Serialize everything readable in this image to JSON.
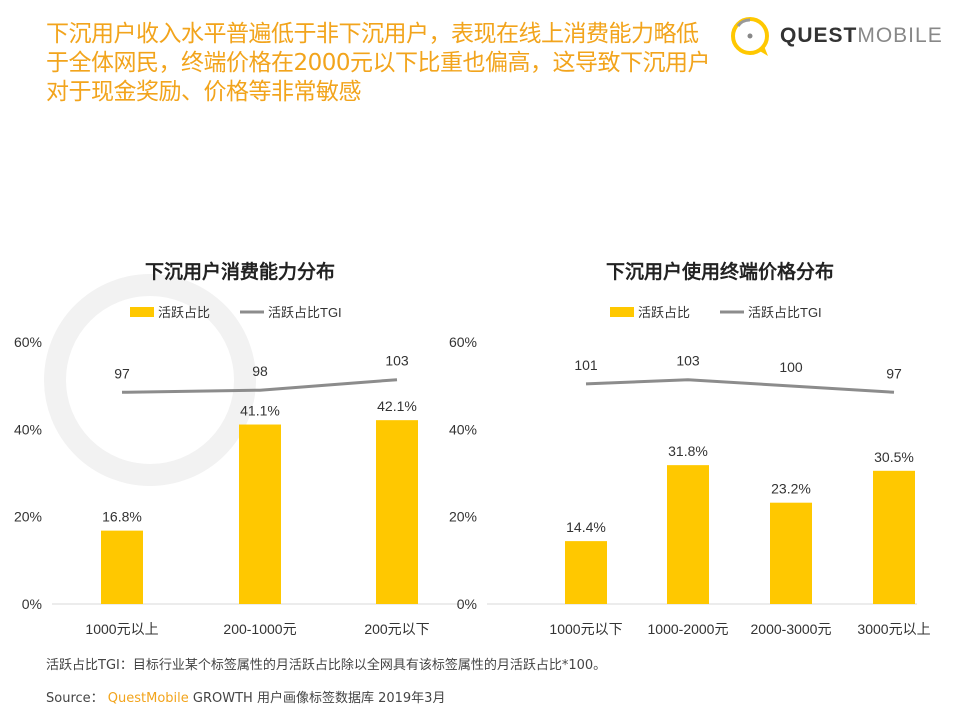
{
  "title": "下沉用户收入水平普遍低于非下沉用户，表现在线上消费能力略低于全体网民，终端价格在2000元以下比重也偏高，这导致下沉用户对于现金奖励、价格等非常敏感",
  "logo": {
    "bold": "QUEST",
    "light": "MOBILE"
  },
  "colors": {
    "title": "#F2A41C",
    "bar": "#FFC800",
    "line": "#8C8C8C",
    "watermark": "#F2F2F2"
  },
  "chart_data": [
    {
      "type": "bar+line",
      "title": "下沉用户消费能力分布",
      "categories": [
        "1000元以上",
        "200-1000元",
        "200元以下"
      ],
      "series": [
        {
          "name": "活跃占比",
          "type": "bar",
          "values": [
            16.8,
            41.1,
            42.1
          ],
          "labels": [
            "16.8%",
            "41.1%",
            "42.1%"
          ]
        },
        {
          "name": "活跃占比TGI",
          "type": "line",
          "values": [
            97,
            98,
            103
          ]
        }
      ],
      "yticks": [
        "0%",
        "20%",
        "40%",
        "60%"
      ],
      "ylim": [
        0,
        60
      ],
      "legend": "top"
    },
    {
      "type": "bar+line",
      "title": "下沉用户使用终端价格分布",
      "categories": [
        "1000元以下",
        "1000-2000元",
        "2000-3000元",
        "3000元以上"
      ],
      "series": [
        {
          "name": "活跃占比",
          "type": "bar",
          "values": [
            14.4,
            31.8,
            23.2,
            30.5
          ],
          "labels": [
            "14.4%",
            "31.8%",
            "23.2%",
            "30.5%"
          ]
        },
        {
          "name": "活跃占比TGI",
          "type": "line",
          "values": [
            101,
            103,
            100,
            97
          ]
        }
      ],
      "yticks": [
        "0%",
        "20%",
        "40%",
        "60%"
      ],
      "ylim": [
        0,
        60
      ],
      "legend": "top"
    }
  ],
  "footer": {
    "note": "活跃占比TGI：目标行业某个标签属性的月活跃占比除以全网具有该标签属性的月活跃占比*100。",
    "source_label": "Source：",
    "source_brand": "QuestMobile",
    "source_rest": "GROWTH 用户画像标签数据库 2019年3月"
  }
}
